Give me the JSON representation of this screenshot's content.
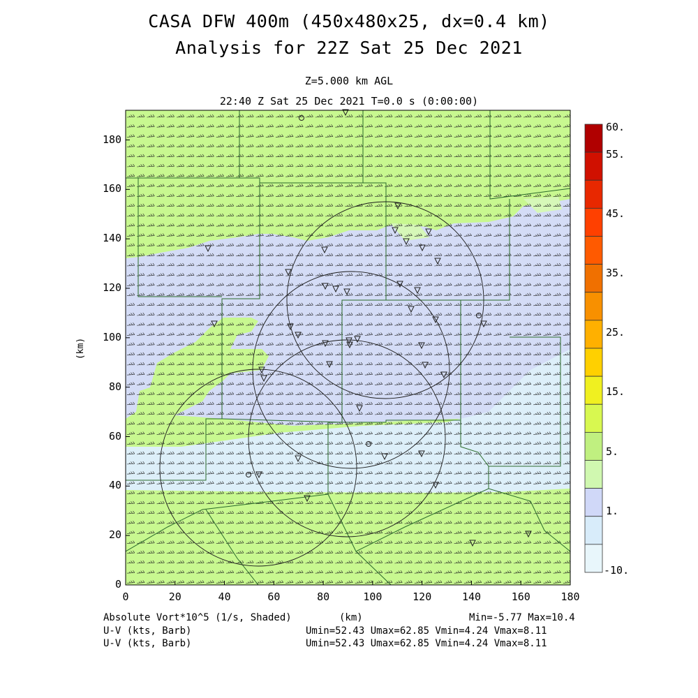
{
  "header": {
    "title_line1": "CASA DFW 400m (450x480x25, dx=0.4 km)",
    "title_line2": "Analysis for 22Z Sat 25 Dec 2021",
    "level": "Z=5.000 km AGL",
    "time": "22:40 Z Sat 25 Dec 2021    T=0.0 s (0:00:00)"
  },
  "axes": {
    "x_ticks": [
      "0",
      "20",
      "40",
      "60",
      "80",
      "100",
      "120",
      "140",
      "160",
      "180"
    ],
    "y_ticks": [
      "0",
      "20",
      "40",
      "60",
      "80",
      "100",
      "120",
      "140",
      "160",
      "180"
    ],
    "x_label": "(km)",
    "y_label": "(km)",
    "x_range_km": [
      0,
      180
    ],
    "y_range_km": [
      0,
      192
    ]
  },
  "colorbar": {
    "labels": [
      "60.",
      "55.",
      "45.",
      "35.",
      "25.",
      "15.",
      "5.",
      "1.",
      "-10."
    ],
    "colors": [
      "#b00000",
      "#d01000",
      "#e82800",
      "#ff4000",
      "#ff5a00",
      "#f07000",
      "#f89000",
      "#ffb000",
      "#ffd000",
      "#f0f020",
      "#d8f850",
      "#c0f080",
      "#d0f8b0",
      "#d0d8f8",
      "#d8ecfa",
      "#e8f6fb"
    ]
  },
  "field": {
    "colors": {
      "green": "#c8f890",
      "lavender": "#d4dcf6",
      "pale_blue": "#ddeff9",
      "light_green": "#d6f8b8"
    },
    "wind_direction": "westerly",
    "station_marker": "triangle-down"
  },
  "footer": {
    "field_name": "Absolute Vort*10^5 (1/s, Shaded)",
    "units_label": "(km)",
    "minmax": "Min=-5.77 Max=10.4",
    "barb_label_1": "U-V (kts, Barb)",
    "barb_stats_1": "Umin=52.43 Umax=62.85 Vmin=4.24 Vmax=8.11",
    "barb_label_2": "U-V (kts, Barb)",
    "barb_stats_2": "Umin=52.43 Umax=62.85 Vmin=4.24 Vmax=8.11"
  }
}
